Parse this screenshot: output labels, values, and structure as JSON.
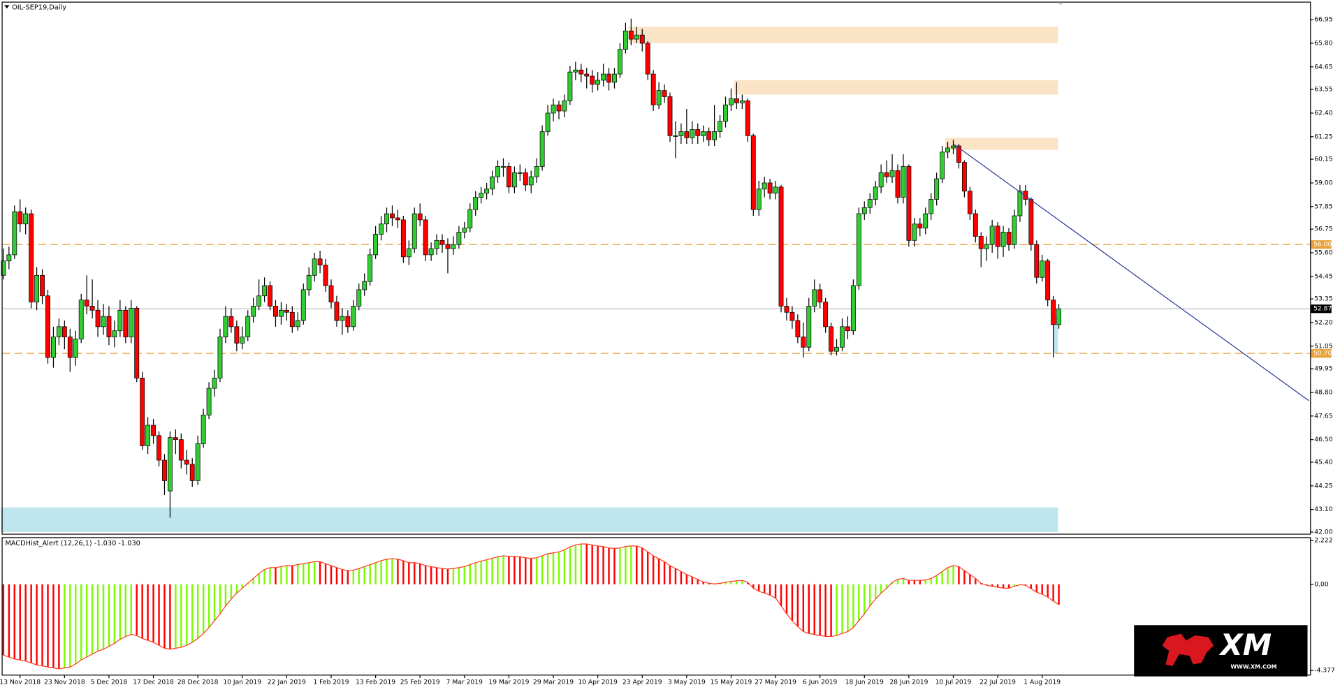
{
  "chart_data": [
    {
      "type": "candlestick",
      "title": "OIL-SEP19,Daily",
      "categories": [
        null,
        null,
        null,
        "13 Nov 2018",
        null,
        null,
        null,
        null,
        null,
        null,
        null,
        "23 Nov 2018",
        null,
        null,
        null,
        null,
        null,
        null,
        null,
        "5 Dec 2018",
        null,
        null,
        null,
        null,
        null,
        null,
        null,
        "17 Dec 2018",
        null,
        null,
        null,
        null,
        null,
        null,
        null,
        "28 Dec 2018",
        null,
        null,
        null,
        null,
        null,
        null,
        null,
        "10 Jan 2019",
        null,
        null,
        null,
        null,
        null,
        null,
        null,
        "22 Jan 2019",
        null,
        null,
        null,
        null,
        null,
        null,
        null,
        "1 Feb 2019",
        null,
        null,
        null,
        null,
        null,
        null,
        null,
        "13 Feb 2019",
        null,
        null,
        null,
        null,
        null,
        null,
        null,
        "25 Feb 2019",
        null,
        null,
        null,
        null,
        null,
        null,
        null,
        "7 Mar 2019",
        null,
        null,
        null,
        null,
        null,
        null,
        null,
        "19 Mar 2019",
        null,
        null,
        null,
        null,
        null,
        null,
        null,
        "29 Mar 2019",
        null,
        null,
        null,
        null,
        null,
        null,
        null,
        "10 Apr 2019",
        null,
        null,
        null,
        null,
        null,
        null,
        null,
        "23 Apr 2019",
        null,
        null,
        null,
        null,
        null,
        null,
        null,
        "3 May 2019",
        null,
        null,
        null,
        null,
        null,
        null,
        null,
        "15 May 2019",
        null,
        null,
        null,
        null,
        null,
        null,
        null,
        "27 May 2019",
        null,
        null,
        null,
        null,
        null,
        null,
        null,
        "6 Jun 2019",
        null,
        null,
        null,
        null,
        null,
        null,
        null,
        "18 Jun 2019",
        null,
        null,
        null,
        null,
        null,
        null,
        null,
        "28 Jun 2019",
        null,
        null,
        null,
        null,
        null,
        null,
        null,
        "10 Jul 2019",
        null,
        null,
        null,
        null,
        null,
        null,
        null,
        "22 Jul 2019",
        null,
        null,
        null,
        null,
        null,
        null,
        null,
        "1 Aug 2019",
        null,
        null,
        null
      ],
      "open": [
        54.5,
        55.2,
        55.5,
        57.6,
        57.0,
        57.5,
        53.2,
        54.5,
        53.5,
        50.5,
        51.5,
        52.0,
        51.5,
        50.5,
        51.4,
        53.3,
        53.0,
        52.8,
        52.0,
        52.5,
        51.5,
        51.8,
        52.8,
        51.5,
        52.9,
        49.5,
        46.2,
        47.2,
        46.7,
        45.5,
        44.0,
        46.6,
        46.5,
        45.5,
        45.3,
        44.5,
        46.3,
        47.7,
        49.0,
        49.5,
        51.5,
        52.5,
        52.0,
        51.2,
        51.5,
        52.5,
        53.0,
        53.5,
        54.0,
        53.0,
        52.5,
        52.8,
        52.7,
        52.0,
        52.3,
        53.8,
        54.5,
        55.3,
        55.0,
        54.0,
        53.2,
        52.3,
        52.5,
        52.0,
        53.0,
        53.8,
        54.2,
        55.5,
        56.5,
        57.0,
        57.5,
        57.3,
        57.2,
        55.4,
        55.8,
        57.5,
        57.2,
        55.5,
        55.8,
        56.2,
        56.0,
        55.8,
        56.0,
        56.6,
        56.8,
        57.7,
        58.3,
        58.5,
        58.7,
        59.3,
        59.8,
        59.8,
        58.8,
        59.5,
        59.5,
        58.9,
        59.3,
        59.8,
        61.5,
        62.4,
        62.8,
        62.5,
        63.0,
        64.4,
        64.5,
        64.3,
        64.2,
        63.8,
        64.0,
        64.3,
        63.9,
        64.3,
        65.5,
        66.4,
        66.0,
        66.2,
        65.8,
        64.3,
        62.8,
        63.5,
        63.2,
        61.3,
        61.3,
        61.5,
        61.2,
        61.6,
        61.3,
        61.5,
        61.1,
        61.5,
        62.0,
        62.8,
        63.1,
        62.9,
        63.0,
        61.3,
        57.7,
        58.7,
        59.0,
        58.5,
        58.8,
        53.0,
        52.7,
        52.3,
        51.5,
        51.0,
        53.0,
        53.8,
        53.2,
        52.0,
        50.8,
        51.0,
        52.0,
        51.8,
        54.0,
        57.5,
        57.8,
        58.2,
        58.8,
        59.5,
        59.3,
        59.6,
        58.3,
        59.8,
        56.2,
        57.0,
        56.8,
        57.5,
        58.2,
        59.2,
        60.5,
        60.7,
        60.8,
        60.0,
        58.6,
        57.5,
        56.4,
        55.8,
        56.0,
        56.9,
        55.9,
        56.6,
        56.0,
        57.4,
        58.6,
        58.2,
        56.0,
        54.4,
        55.2,
        53.3,
        52.1
      ],
      "high": [
        55.8,
        55.9,
        57.9,
        58.2,
        57.8,
        57.7,
        54.9,
        54.8,
        53.8,
        52.0,
        52.4,
        52.3,
        51.9,
        51.8,
        53.6,
        54.5,
        54.3,
        53.3,
        53.1,
        53.0,
        52.3,
        53.3,
        53.0,
        53.3,
        53.0,
        49.8,
        47.6,
        47.5,
        46.9,
        45.8,
        46.9,
        47.0,
        46.8,
        46.0,
        45.6,
        46.7,
        48.0,
        49.3,
        49.9,
        51.9,
        53.0,
        52.9,
        52.3,
        52.0,
        52.8,
        53.4,
        54.3,
        54.4,
        54.2,
        53.3,
        53.2,
        53.1,
        53.0,
        52.7,
        54.1,
        54.9,
        55.6,
        55.7,
        55.3,
        54.3,
        53.5,
        52.9,
        52.8,
        53.3,
        54.1,
        54.6,
        55.8,
        56.9,
        57.4,
        57.8,
        57.9,
        57.7,
        57.4,
        56.2,
        57.8,
        58.0,
        57.4,
        56.1,
        56.5,
        56.5,
        56.3,
        56.4,
        56.9,
        57.1,
        58.0,
        58.6,
        58.8,
        59.0,
        59.6,
        60.1,
        60.2,
        60.0,
        59.8,
        59.9,
        59.7,
        59.6,
        60.2,
        61.8,
        62.8,
        63.1,
        63.0,
        63.3,
        64.7,
        64.9,
        64.8,
        64.6,
        64.5,
        64.4,
        64.8,
        64.6,
        64.6,
        65.8,
        66.8,
        67.0,
        66.6,
        66.5,
        65.9,
        64.5,
        63.9,
        63.8,
        63.4,
        62.0,
        61.9,
        62.6,
        62.0,
        61.9,
        61.8,
        61.7,
        62.8,
        62.3,
        63.2,
        63.6,
        63.9,
        63.3,
        63.1,
        61.4,
        59.1,
        59.3,
        59.2,
        59.1,
        58.9,
        53.4,
        53.0,
        52.6,
        52.2,
        53.4,
        54.3,
        54.1,
        53.4,
        52.2,
        51.4,
        52.4,
        52.5,
        54.3,
        57.8,
        58.1,
        58.5,
        59.1,
        59.9,
        60.1,
        60.4,
        59.9,
        60.4,
        59.9,
        57.3,
        57.3,
        57.8,
        58.5,
        59.5,
        60.8,
        61.0,
        61.1,
        60.9,
        60.1,
        58.8,
        57.7,
        56.6,
        56.4,
        57.2,
        57.1,
        56.9,
        56.8,
        57.7,
        58.9,
        58.9,
        58.3,
        56.2,
        55.5,
        55.3,
        53.5,
        53.1
      ],
      "low": [
        54.3,
        54.8,
        55.3,
        56.6,
        56.5,
        52.9,
        52.8,
        53.1,
        50.2,
        50.0,
        51.1,
        50.9,
        49.8,
        50.1,
        51.2,
        52.6,
        52.4,
        51.5,
        51.6,
        51.1,
        51.0,
        51.5,
        51.2,
        51.2,
        49.3,
        46.0,
        45.8,
        46.3,
        45.2,
        43.8,
        42.7,
        45.8,
        45.1,
        44.8,
        44.2,
        44.3,
        46.1,
        47.5,
        48.6,
        49.3,
        51.2,
        51.7,
        50.8,
        50.9,
        51.3,
        52.2,
        52.8,
        53.2,
        52.8,
        52.0,
        52.1,
        52.3,
        51.7,
        51.8,
        52.1,
        53.5,
        54.2,
        54.6,
        53.7,
        52.9,
        52.0,
        51.6,
        51.7,
        51.8,
        52.8,
        53.5,
        54.0,
        55.3,
        56.2,
        56.6,
        56.9,
        56.8,
        55.1,
        55.0,
        55.6,
        56.9,
        55.2,
        55.2,
        55.5,
        55.6,
        54.6,
        55.5,
        55.8,
        56.3,
        56.6,
        57.4,
        58.0,
        58.2,
        58.4,
        59.0,
        59.3,
        58.5,
        58.5,
        59.1,
        58.6,
        58.5,
        59.0,
        59.6,
        61.3,
        62.0,
        62.1,
        62.2,
        62.8,
        64.0,
        63.9,
        63.6,
        63.4,
        63.5,
        63.7,
        63.5,
        63.6,
        64.1,
        65.3,
        65.7,
        65.8,
        65.4,
        64.0,
        62.5,
        62.6,
        62.9,
        61.0,
        60.2,
        60.9,
        60.9,
        60.9,
        60.9,
        61.0,
        60.8,
        60.8,
        61.2,
        61.7,
        62.5,
        62.6,
        62.6,
        61.0,
        57.4,
        57.4,
        58.3,
        58.2,
        58.2,
        52.7,
        52.3,
        51.9,
        51.2,
        50.5,
        50.8,
        52.7,
        52.9,
        51.7,
        50.6,
        50.6,
        50.8,
        51.4,
        51.6,
        53.8,
        57.2,
        57.5,
        57.9,
        58.5,
        59.0,
        59.0,
        58.0,
        58.0,
        55.9,
        55.9,
        56.4,
        56.5,
        57.2,
        57.9,
        59.0,
        60.2,
        60.4,
        59.7,
        58.3,
        57.2,
        56.1,
        54.9,
        55.2,
        55.6,
        55.3,
        55.4,
        55.7,
        55.8,
        57.1,
        57.9,
        55.7,
        54.1,
        54.2,
        53.0,
        50.5,
        51.9
      ],
      "close": [
        55.2,
        55.5,
        57.6,
        57.0,
        57.5,
        53.2,
        54.5,
        53.5,
        50.5,
        51.5,
        52.0,
        51.5,
        50.5,
        51.4,
        53.3,
        53.0,
        52.8,
        52.0,
        52.5,
        51.5,
        51.8,
        52.8,
        51.5,
        52.9,
        49.5,
        46.2,
        47.2,
        46.7,
        45.5,
        44.5,
        46.6,
        46.5,
        45.5,
        45.3,
        44.5,
        46.3,
        47.7,
        49.0,
        49.5,
        51.5,
        52.5,
        52.0,
        51.2,
        51.5,
        52.5,
        53.0,
        53.5,
        54.0,
        53.0,
        52.5,
        52.8,
        52.7,
        52.0,
        52.3,
        53.8,
        54.5,
        55.3,
        55.0,
        54.0,
        53.2,
        52.3,
        52.5,
        52.0,
        53.0,
        53.8,
        54.2,
        55.5,
        56.5,
        57.0,
        57.5,
        57.3,
        57.2,
        55.4,
        55.8,
        57.5,
        57.2,
        55.5,
        55.8,
        56.2,
        56.0,
        55.8,
        56.0,
        56.6,
        56.8,
        57.7,
        58.3,
        58.5,
        58.7,
        59.3,
        59.8,
        59.8,
        58.8,
        59.5,
        59.5,
        58.9,
        59.3,
        59.8,
        61.5,
        62.4,
        62.8,
        62.5,
        63.0,
        64.4,
        64.5,
        64.3,
        64.2,
        63.8,
        64.0,
        64.3,
        63.9,
        64.3,
        65.5,
        66.4,
        66.0,
        66.2,
        65.8,
        64.3,
        62.8,
        63.5,
        63.2,
        61.3,
        61.3,
        61.5,
        61.2,
        61.6,
        61.3,
        61.5,
        61.1,
        61.5,
        62.0,
        62.8,
        63.1,
        62.9,
        63.0,
        61.3,
        57.7,
        58.7,
        59.0,
        58.5,
        58.8,
        53.0,
        52.7,
        52.3,
        51.5,
        51.0,
        53.0,
        53.8,
        53.2,
        52.0,
        50.8,
        51.0,
        52.0,
        51.8,
        54.0,
        57.5,
        57.8,
        58.2,
        58.8,
        59.5,
        59.3,
        59.6,
        58.3,
        59.8,
        56.2,
        57.0,
        56.8,
        57.5,
        58.2,
        59.2,
        60.5,
        60.7,
        60.8,
        60.0,
        58.6,
        57.5,
        56.4,
        55.8,
        56.0,
        56.9,
        55.9,
        56.6,
        56.0,
        57.4,
        58.6,
        58.2,
        56.0,
        54.4,
        55.2,
        53.3,
        52.1,
        52.87
      ],
      "up_color": "#32cd32",
      "down_color": "#ff0000",
      "ylim": [
        42.0,
        66.95
      ],
      "yticks": [
        66.95,
        {
          "value": 65.8,
          "label": "65.80"
        },
        64.65,
        63.55,
        {
          "value": 62.4,
          "label": "62.40"
        },
        61.25,
        60.15,
        {
          "value": 59.0,
          "label": "59.00"
        },
        57.85,
        56.75,
        {
          "value": 55.6,
          "label": "55.60"
        },
        54.45,
        53.35,
        {
          "value": 52.2,
          "label": "52.20"
        },
        51.05,
        49.95,
        {
          "value": 48.8,
          "label": "48.80"
        },
        47.65,
        {
          "value": 46.5,
          "label": "46.50"
        },
        {
          "value": 45.4,
          "label": "45.40"
        },
        44.25,
        {
          "value": 43.1,
          "label": "43.10"
        },
        {
          "value": 42.0,
          "label": "42.00"
        }
      ],
      "levels": [
        {
          "value": 56.0,
          "label": "56.00"
        },
        {
          "value": 50.7,
          "label": "50.70"
        }
      ],
      "level_color": "#e8a33a",
      "last_price": 52.87,
      "zones": [
        {
          "from": 113,
          "to": 190,
          "y": [
            65.8,
            66.6
          ],
          "color": "#fbe3c6"
        },
        {
          "from": 132,
          "to": 190,
          "y": [
            63.3,
            64.0
          ],
          "color": "#fbe3c6"
        },
        {
          "from": 170,
          "to": 190,
          "y": [
            60.6,
            61.2
          ],
          "color": "#fbe3c6"
        },
        {
          "from": 0,
          "to": 190,
          "y": [
            42.0,
            43.2
          ],
          "color": "#bfe5ee"
        },
        {
          "from": 189.5,
          "to": 190,
          "y": [
            50.7,
            52.5
          ],
          "color": "#bfe5ee"
        }
      ],
      "trendline": {
        "from": [
          171,
          60.9
        ],
        "to": [
          235,
          48.4
        ],
        "color": "#2a3a9c"
      },
      "logo_text": "XM",
      "logo_url": "WWW.XM.COM"
    },
    {
      "type": "bar",
      "title": "MACDHist_Alert (12,26,1) -1.030 -1.030",
      "values": [
        -3.6,
        -3.7,
        -3.8,
        -3.85,
        -3.9,
        -4.0,
        -4.1,
        -4.15,
        -4.2,
        -4.25,
        -4.3,
        -4.25,
        -4.2,
        -4.05,
        -3.85,
        -3.7,
        -3.55,
        -3.4,
        -3.3,
        -3.15,
        -3.0,
        -2.8,
        -2.65,
        -2.55,
        -2.6,
        -2.75,
        -2.85,
        -2.95,
        -3.1,
        -3.25,
        -3.3,
        -3.25,
        -3.2,
        -3.1,
        -2.95,
        -2.75,
        -2.5,
        -2.2,
        -1.85,
        -1.5,
        -1.1,
        -0.75,
        -0.45,
        -0.2,
        0.05,
        0.3,
        0.55,
        0.75,
        0.85,
        0.85,
        0.9,
        0.95,
        0.95,
        1.0,
        1.05,
        1.1,
        1.15,
        1.15,
        1.05,
        0.95,
        0.85,
        0.75,
        0.7,
        0.72,
        0.8,
        0.9,
        1.0,
        1.1,
        1.2,
        1.28,
        1.3,
        1.28,
        1.2,
        1.1,
        1.1,
        1.05,
        0.95,
        0.9,
        0.85,
        0.8,
        0.78,
        0.8,
        0.85,
        0.9,
        1.0,
        1.1,
        1.18,
        1.25,
        1.32,
        1.4,
        1.45,
        1.42,
        1.42,
        1.4,
        1.35,
        1.32,
        1.35,
        1.45,
        1.55,
        1.6,
        1.65,
        1.75,
        1.9,
        2.0,
        2.05,
        2.05,
        2.0,
        1.95,
        1.92,
        1.85,
        1.82,
        1.85,
        1.92,
        1.95,
        1.95,
        1.85,
        1.65,
        1.45,
        1.3,
        1.15,
        0.95,
        0.8,
        0.65,
        0.5,
        0.38,
        0.25,
        0.12,
        0.05,
        0.02,
        0.05,
        0.1,
        0.15,
        0.18,
        0.2,
        0.1,
        -0.2,
        -0.35,
        -0.45,
        -0.55,
        -0.7,
        -1.1,
        -1.5,
        -1.85,
        -2.15,
        -2.4,
        -2.5,
        -2.55,
        -2.6,
        -2.65,
        -2.65,
        -2.6,
        -2.5,
        -2.4,
        -2.2,
        -1.85,
        -1.5,
        -1.1,
        -0.75,
        -0.45,
        -0.2,
        0.1,
        0.25,
        0.3,
        0.2,
        0.2,
        0.2,
        0.22,
        0.3,
        0.45,
        0.65,
        0.85,
        0.95,
        0.9,
        0.7,
        0.5,
        0.3,
        0.05,
        -0.05,
        -0.1,
        -0.15,
        -0.2,
        -0.2,
        -0.1,
        -0.02,
        -0.05,
        -0.22,
        -0.4,
        -0.5,
        -0.65,
        -0.85,
        -1.03
      ],
      "up_color": "#7cfc00",
      "down_color": "#ff0000",
      "line_color": "#ff3b1f",
      "ylim": [
        -4.377,
        2.222
      ],
      "yticks": [
        2.222,
        {
          "value": 0,
          "label": "0.00"
        },
        -4.377
      ]
    }
  ]
}
